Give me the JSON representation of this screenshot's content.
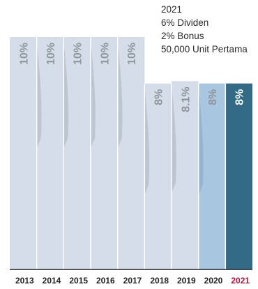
{
  "chart_data": {
    "type": "bar",
    "categories": [
      "2013",
      "2014",
      "2015",
      "2016",
      "2017",
      "2018",
      "2019",
      "2020",
      "2021"
    ],
    "values": [
      10,
      10,
      10,
      10,
      10,
      8,
      8.1,
      8,
      8
    ],
    "value_labels": [
      "10%",
      "10%",
      "10%",
      "10%",
      "10%",
      "8%",
      "8.1%",
      "8%",
      "8%"
    ],
    "highlight_category": "2021",
    "title": "",
    "xlabel": "",
    "ylabel": "",
    "ylim": [
      0,
      10.6
    ],
    "grid": false,
    "annotation": {
      "year": "2021",
      "lines": [
        "6% Dividen",
        "2% Bonus",
        "50,000 Unit Pertama"
      ]
    },
    "colors": {
      "default_bar": "#d5dde8",
      "bar_2020": "#a9c6e0",
      "bar_2021": "#336a84",
      "shadow": "#b9c3cf",
      "label_default": "#8f959c",
      "label_on_dark": "#ffffff",
      "axis_line": "#222222",
      "tick_label": "#222222",
      "tick_label_highlight": "#b5123d"
    }
  }
}
